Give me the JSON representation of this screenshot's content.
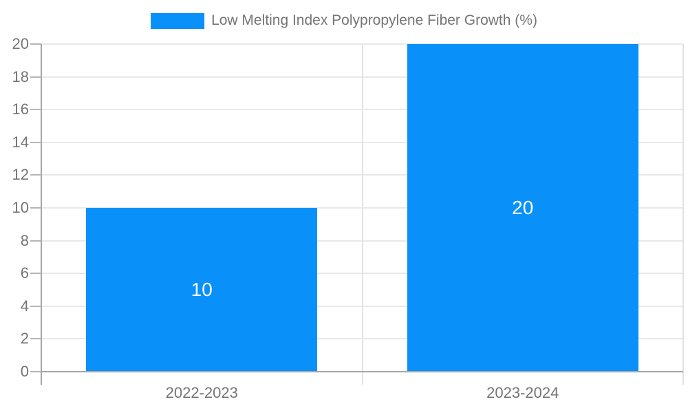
{
  "chart_data": {
    "type": "bar",
    "series_name": "Low Melting Index Polypropylene Fiber Growth (%)",
    "categories": [
      "2022-2023",
      "2023-2024"
    ],
    "values": [
      10,
      20
    ],
    "value_labels": [
      "10",
      "20"
    ],
    "ylim": [
      0,
      20
    ],
    "ytick_step": 2,
    "ytick_labels": [
      "0",
      "2",
      "4",
      "6",
      "8",
      "10",
      "12",
      "14",
      "16",
      "18",
      "20"
    ],
    "grid": true,
    "legend_position": "top-center",
    "colors": {
      "bar": "#0991f9",
      "value_label": "#ffffff",
      "axis_text": "#757575",
      "grid_line": "#e8e8e8",
      "axis_line": "#a6a6a6",
      "tick_mark": "#b5b5b5",
      "category_divider": "#e2e2e2",
      "background": "#ffffff"
    }
  }
}
